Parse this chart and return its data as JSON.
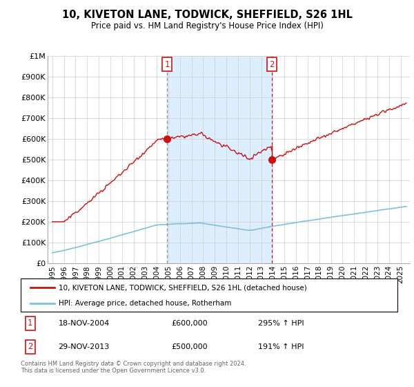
{
  "title": "10, KIVETON LANE, TODWICK, SHEFFIELD, S26 1HL",
  "subtitle": "Price paid vs. HM Land Registry's House Price Index (HPI)",
  "legend_line1": "10, KIVETON LANE, TODWICK, SHEFFIELD, S26 1HL (detached house)",
  "legend_line2": "HPI: Average price, detached house, Rotherham",
  "annotation1_date": "18-NOV-2004",
  "annotation1_price": "£600,000",
  "annotation1_hpi": "295% ↑ HPI",
  "annotation2_date": "29-NOV-2013",
  "annotation2_price": "£500,000",
  "annotation2_hpi": "191% ↑ HPI",
  "footnote": "Contains HM Land Registry data © Crown copyright and database right 2024.\nThis data is licensed under the Open Government Licence v3.0.",
  "hpi_color": "#7fbfdf",
  "price_color": "#cc1111",
  "shaded_color": "#ddeeff",
  "vline1_color": "#888888",
  "vline2_color": "#cc1111",
  "annotation_box_color": "#cc1111",
  "ylim": [
    0,
    1000000
  ],
  "yticks": [
    0,
    100000,
    200000,
    300000,
    400000,
    500000,
    600000,
    700000,
    800000,
    900000,
    1000000
  ],
  "ytick_labels": [
    "£0",
    "£100K",
    "£200K",
    "£300K",
    "£400K",
    "£500K",
    "£600K",
    "£700K",
    "£800K",
    "£900K",
    "£1M"
  ],
  "t1": 2004.88,
  "t2": 2013.91,
  "price1": 600000,
  "price2": 500000
}
